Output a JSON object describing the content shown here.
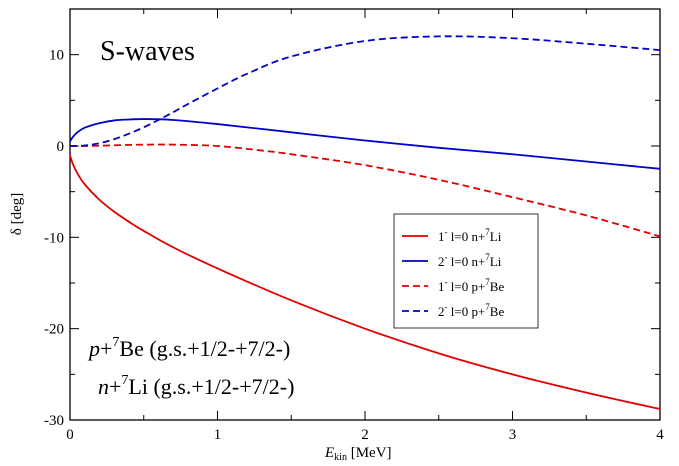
{
  "chart_data": {
    "type": "line",
    "panel_label": "S-waves",
    "xlabel": "E",
    "xlabel_sub": "kin",
    "xlabel_unit": "[MeV]",
    "ylabel": "δ [deg]",
    "xlim": [
      0,
      4
    ],
    "ylim": [
      -30,
      15
    ],
    "xticks": [
      0,
      1,
      2,
      3,
      4
    ],
    "yticks": [
      -30,
      -20,
      -10,
      0,
      10
    ],
    "grid": false,
    "legend_position": "center-right",
    "annotations": [
      {
        "particle": "p",
        "nucleus": "Be",
        "mass": "7",
        "states": "(g.s.+1/2-+7/2-)"
      },
      {
        "particle": "n",
        "nucleus": "Li",
        "mass": "7",
        "states": "(g.s.+1/2-+7/2-)"
      }
    ],
    "series": [
      {
        "name": "1- l=0 n+7Li",
        "legend": {
          "jp": "1",
          "parity": "-",
          "orbital": "l=0",
          "reaction": "n+",
          "mass": "7",
          "nucleus": "Li"
        },
        "color": "#e00000",
        "dash": "solid",
        "x": [
          0,
          0.02,
          0.05,
          0.1,
          0.2,
          0.3,
          0.4,
          0.5,
          0.7,
          1.0,
          1.5,
          2.0,
          2.5,
          3.0,
          3.5,
          4.0
        ],
        "y": [
          -1.0,
          -2.0,
          -3.0,
          -4.2,
          -5.9,
          -7.2,
          -8.3,
          -9.3,
          -11.1,
          -13.4,
          -16.9,
          -20.0,
          -22.7,
          -25.0,
          -27.0,
          -28.8
        ]
      },
      {
        "name": "2- l=0 n+7Li",
        "legend": {
          "jp": "2",
          "parity": "-",
          "orbital": "l=0",
          "reaction": "n+",
          "mass": "7",
          "nucleus": "Li"
        },
        "color": "#0000cc",
        "dash": "solid",
        "x": [
          0,
          0.02,
          0.05,
          0.1,
          0.2,
          0.3,
          0.4,
          0.5,
          0.7,
          1.0,
          1.5,
          2.0,
          2.5,
          3.0,
          3.5,
          4.0
        ],
        "y": [
          0.5,
          1.0,
          1.5,
          2.0,
          2.5,
          2.8,
          2.9,
          2.95,
          2.85,
          2.4,
          1.5,
          0.6,
          -0.2,
          -0.9,
          -1.7,
          -2.5
        ]
      },
      {
        "name": "1- l=0 p+7Be",
        "legend": {
          "jp": "1",
          "parity": "-",
          "orbital": "l=0",
          "reaction": "p+",
          "mass": "7",
          "nucleus": "Be"
        },
        "color": "#e00000",
        "dash": "dashed",
        "x": [
          0,
          0.1,
          0.2,
          0.3,
          0.4,
          0.5,
          0.7,
          1.0,
          1.3,
          1.5,
          2.0,
          2.5,
          3.0,
          3.5,
          4.0
        ],
        "y": [
          0,
          0,
          0.03,
          0.08,
          0.12,
          0.15,
          0.15,
          0.0,
          -0.5,
          -0.9,
          -2.1,
          -3.7,
          -5.6,
          -7.6,
          -9.9
        ]
      },
      {
        "name": "2- l=0 p+7Be",
        "legend": {
          "jp": "2",
          "parity": "-",
          "orbital": "l=0",
          "reaction": "p+",
          "mass": "7",
          "nucleus": "Be"
        },
        "color": "#0000cc",
        "dash": "dashed",
        "x": [
          0,
          0.1,
          0.2,
          0.3,
          0.4,
          0.5,
          0.6,
          0.7,
          0.8,
          1.0,
          1.2,
          1.5,
          2.0,
          2.5,
          3.0,
          3.5,
          4.0
        ],
        "y": [
          0,
          0.05,
          0.3,
          0.75,
          1.35,
          2.05,
          2.85,
          3.7,
          4.6,
          6.3,
          7.9,
          9.8,
          11.5,
          12.0,
          11.8,
          11.2,
          10.5
        ]
      }
    ]
  }
}
